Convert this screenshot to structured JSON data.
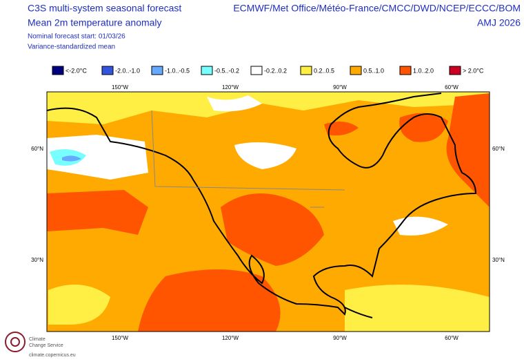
{
  "header": {
    "title": [
      "C3S multi-system seasonal forecast",
      "Mean 2m temperature anomaly"
    ],
    "subtitle": [
      "Nominal forecast start: 01/03/26",
      "Variance-standardized mean"
    ],
    "models": "ECMWF/Met Office/Météo-France/CMCC/DWD/NCEP/ECCC/BOM",
    "period": "AMJ 2026"
  },
  "legend": [
    {
      "label": "<-2.0°C",
      "color": "#00007f"
    },
    {
      "label": "-2.0..-1.0",
      "color": "#3355dd"
    },
    {
      "label": "-1.0..-0.5",
      "color": "#66aaff"
    },
    {
      "label": "-0.5..-0.2",
      "color": "#77ffff"
    },
    {
      "label": "-0.2..0.2",
      "color": "#ffffff"
    },
    {
      "label": "0.2..0.5",
      "color": "#ffee44"
    },
    {
      "label": "0.5..1.0",
      "color": "#ffaa00"
    },
    {
      "label": "1.0..2.0",
      "color": "#ff5500"
    },
    {
      "label": "> 2.0°C",
      "color": "#cc0022"
    }
  ],
  "axes": {
    "longitude": [
      "150°W",
      "120°W",
      "90°W",
      "60°W"
    ],
    "latitude": [
      "60°N",
      "30°N"
    ]
  },
  "footer": {
    "org": [
      "Climate",
      "Change Service"
    ],
    "url": "climate.copernicus.eu"
  }
}
